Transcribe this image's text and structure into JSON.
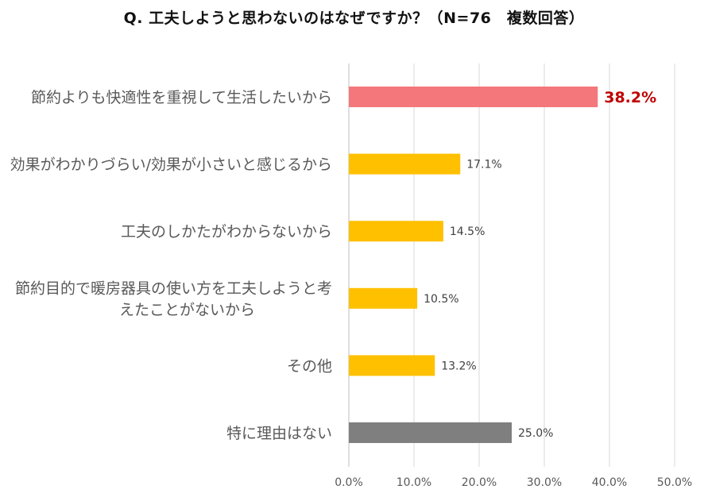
{
  "chart_data": {
    "type": "bar",
    "orientation": "horizontal",
    "title": "Q. 工夫しようと思わないのはなぜですか？（N=76　複数回答）",
    "categories": [
      [
        "節約よりも快適性を重視して生活したいから"
      ],
      [
        "効果がわかりづらい/効果が小さいと感じるから"
      ],
      [
        "工夫のしかたがわからないから"
      ],
      [
        "節約目的で暖房器具の使い方を工夫しようと考",
        "えたことがないから"
      ],
      [
        "その他"
      ],
      [
        "特に理由はない"
      ]
    ],
    "values": [
      38.2,
      17.1,
      14.5,
      10.5,
      13.2,
      25.0
    ],
    "value_labels": [
      "38.2%",
      "17.1%",
      "14.5%",
      "10.5%",
      "13.2%",
      "25.0%"
    ],
    "colors": [
      "#f4777b",
      "#ffc000",
      "#ffc000",
      "#ffc000",
      "#ffc000",
      "#7f7f7f"
    ],
    "highlight_index": 0,
    "xlim": [
      0,
      50
    ],
    "xticks": [
      0,
      10,
      20,
      30,
      40,
      50
    ],
    "xtick_labels": [
      "0.0%",
      "10.0%",
      "20.0%",
      "30.0%",
      "40.0%",
      "50.0%"
    ],
    "grid": true,
    "legend": false
  }
}
